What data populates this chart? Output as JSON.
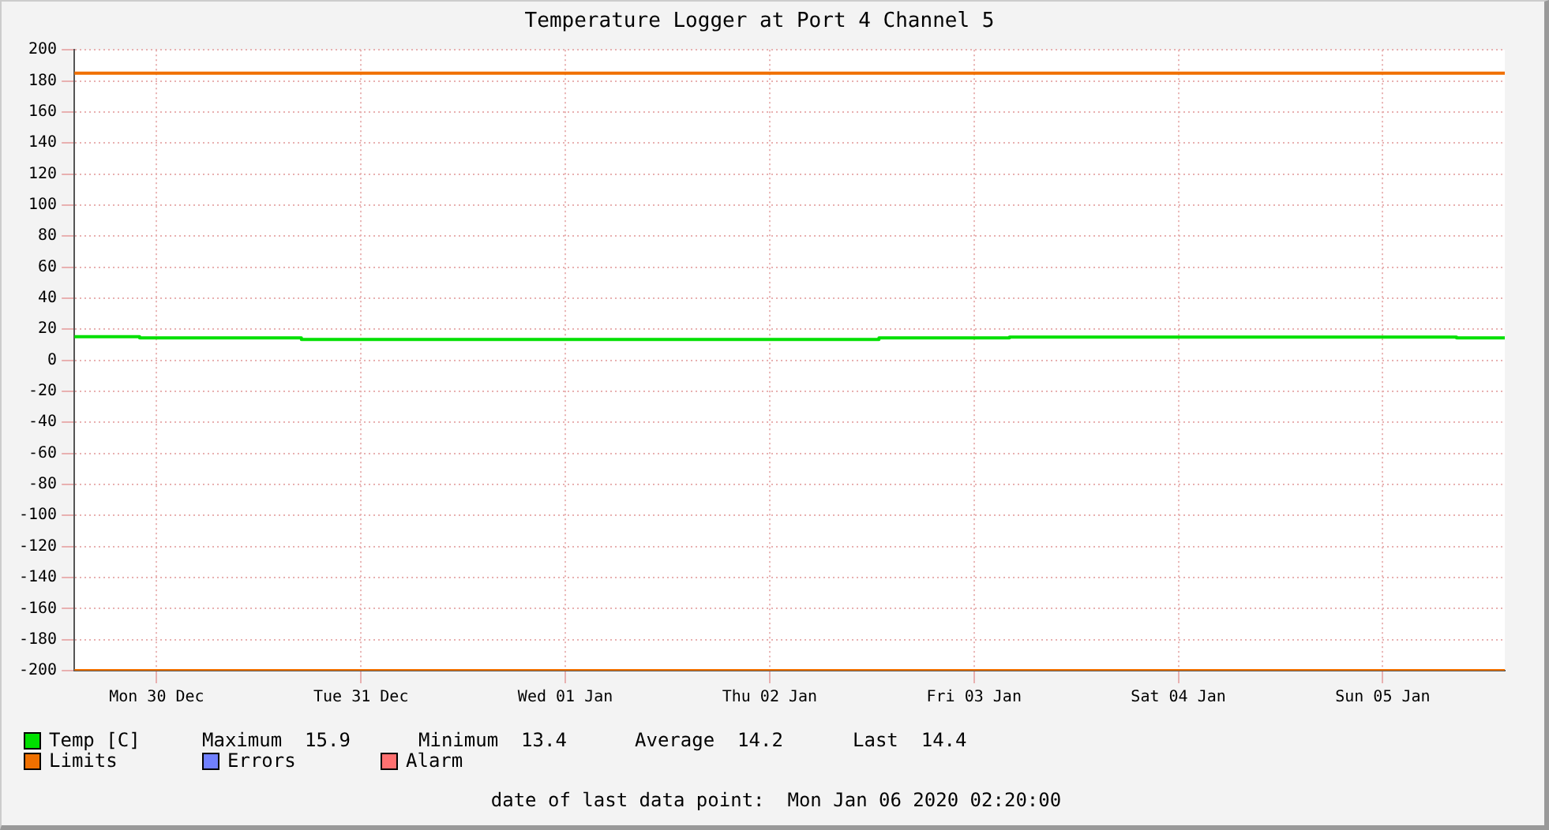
{
  "chart_data": {
    "type": "step",
    "title": "Temperature Logger at Port 4 Channel 5",
    "xlim": [
      "2019-12-30T02:20",
      "2020-01-06T02:20"
    ],
    "xticks": [
      {
        "value": "2019-12-30T12:00",
        "label": "Mon 30 Dec"
      },
      {
        "value": "2019-12-31T12:00",
        "label": "Tue 31 Dec"
      },
      {
        "value": "2020-01-01T12:00",
        "label": "Wed 01 Jan"
      },
      {
        "value": "2020-01-02T12:00",
        "label": "Thu 02 Jan"
      },
      {
        "value": "2020-01-03T12:00",
        "label": "Fri 03 Jan"
      },
      {
        "value": "2020-01-04T12:00",
        "label": "Sat 04 Jan"
      },
      {
        "value": "2020-01-05T12:00",
        "label": "Sun 05 Jan"
      }
    ],
    "ylim": [
      -200,
      200
    ],
    "yticks": [
      -200,
      -180,
      -160,
      -140,
      -120,
      -100,
      -80,
      -60,
      -40,
      -20,
      0,
      20,
      40,
      60,
      80,
      100,
      120,
      140,
      160,
      180,
      200
    ],
    "grid": true,
    "legend": "bottom",
    "series": [
      {
        "name": "Temp [C]",
        "color": "#00e000",
        "x": [
          "2019-12-30T02:20",
          "2019-12-30T10:00",
          "2019-12-31T05:00",
          "2020-01-03T00:50",
          "2020-01-03T16:10",
          "2020-01-05T20:40",
          "2020-01-05T21:20",
          "2020-01-06T02:20"
        ],
        "values": [
          15.9,
          15.2,
          14.4,
          13.4,
          14.4,
          14.9,
          14.4,
          14.4
        ]
      },
      {
        "name": "Limits",
        "type": "line",
        "color": "#f07000",
        "x": [
          "2019-12-30T02:20",
          "2020-01-06T02:20"
        ],
        "values": [
          185,
          185
        ]
      },
      {
        "type": "line",
        "color": "#f07000",
        "x": [
          "2019-12-30T02:20",
          "2020-01-06T02:20"
        ],
        "values": [
          -200,
          -200
        ]
      },
      {
        "name": "Errors",
        "type": "line",
        "color": "#7080ff"
      },
      {
        "name": "Alarm",
        "type": "line",
        "color": "#ff7070"
      }
    ],
    "annotations": [
      "Maximum  15.9",
      "Minimum  13.4",
      "Average  14.2",
      "Last  14.4",
      "date of last data point:  Mon Jan 06 2020 02:20:00"
    ]
  }
}
